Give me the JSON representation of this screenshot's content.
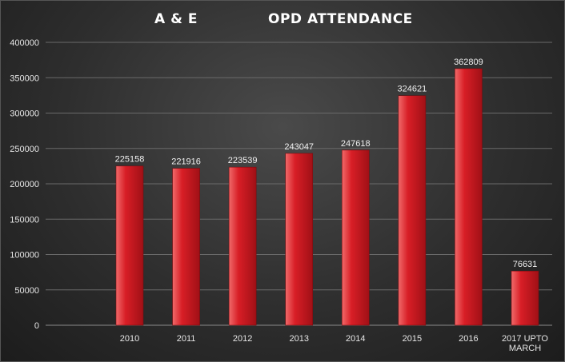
{
  "chart_data": {
    "type": "bar",
    "title_left": "A & E",
    "title_right": "OPD ATTENDANCE",
    "categories": [
      "2010",
      "2011",
      "2012",
      "2013",
      "2014",
      "2015",
      "2016",
      "2017 UPTO MARCH"
    ],
    "values": [
      225158,
      221916,
      223539,
      243047,
      247618,
      324621,
      362809,
      76631
    ],
    "data_labels": [
      "225158",
      "221916",
      "223539",
      "243047",
      "247618",
      "324621",
      "362809",
      "76631"
    ],
    "yticks": [
      "0",
      "50000",
      "100000",
      "150000",
      "200000",
      "250000",
      "300000",
      "350000",
      "400000"
    ],
    "ylim": [
      0,
      400000
    ],
    "xlabel": "",
    "ylabel": "",
    "grid": true,
    "legend": "none",
    "colors": {
      "bar": "#d81e26",
      "bar_light": "#f06a6a",
      "bar_dark": "#a01016",
      "grid": "#6a6a6a",
      "text": "#e6e6e6"
    }
  }
}
